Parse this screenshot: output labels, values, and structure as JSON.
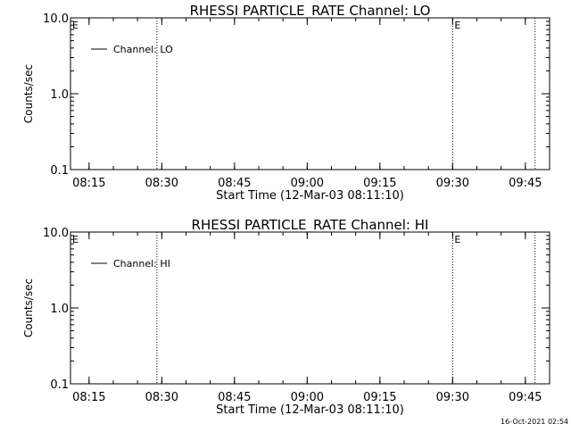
{
  "chart_data": [
    {
      "type": "line",
      "title": "RHESSI PARTICLE_RATE Channel: LO",
      "xlabel": "Start Time (12-Mar-03 08:11:10)",
      "ylabel": "Counts/sec",
      "y_scale": "log",
      "ylim": [
        0.1,
        10.0
      ],
      "y_ticks": [
        "0.1",
        "1.0",
        "10.0"
      ],
      "xlim": [
        "08:11:10",
        "09:50:00"
      ],
      "x_ticks": [
        "08:15",
        "08:30",
        "08:45",
        "09:00",
        "09:15",
        "09:30",
        "09:45"
      ],
      "series": [
        {
          "name": "Channel: LO",
          "x": [],
          "values": []
        }
      ],
      "vertical_markers": [
        {
          "time": "08:29",
          "style": "dotted",
          "label": ""
        },
        {
          "time": "09:30",
          "style": "dotted",
          "label": "E"
        },
        {
          "time": "09:47",
          "style": "dotted",
          "label": ""
        }
      ],
      "corner_label": "E",
      "legend_position": "top-left",
      "grid": false
    },
    {
      "type": "line",
      "title": "RHESSI PARTICLE_RATE Channel: HI",
      "xlabel": "Start Time (12-Mar-03 08:11:10)",
      "ylabel": "Counts/sec",
      "y_scale": "log",
      "ylim": [
        0.1,
        10.0
      ],
      "y_ticks": [
        "0.1",
        "1.0",
        "10.0"
      ],
      "xlim": [
        "08:11:10",
        "09:50:00"
      ],
      "x_ticks": [
        "08:15",
        "08:30",
        "08:45",
        "09:00",
        "09:15",
        "09:30",
        "09:45"
      ],
      "series": [
        {
          "name": "Channel: HI",
          "x": [],
          "values": []
        }
      ],
      "vertical_markers": [
        {
          "time": "08:29",
          "style": "dotted",
          "label": ""
        },
        {
          "time": "09:30",
          "style": "dotted",
          "label": "E"
        },
        {
          "time": "09:47",
          "style": "dotted",
          "label": ""
        }
      ],
      "corner_label": "E",
      "legend_position": "top-left",
      "grid": false
    }
  ],
  "footer": {
    "timestamp": "16-Oct-2021 02:54"
  }
}
